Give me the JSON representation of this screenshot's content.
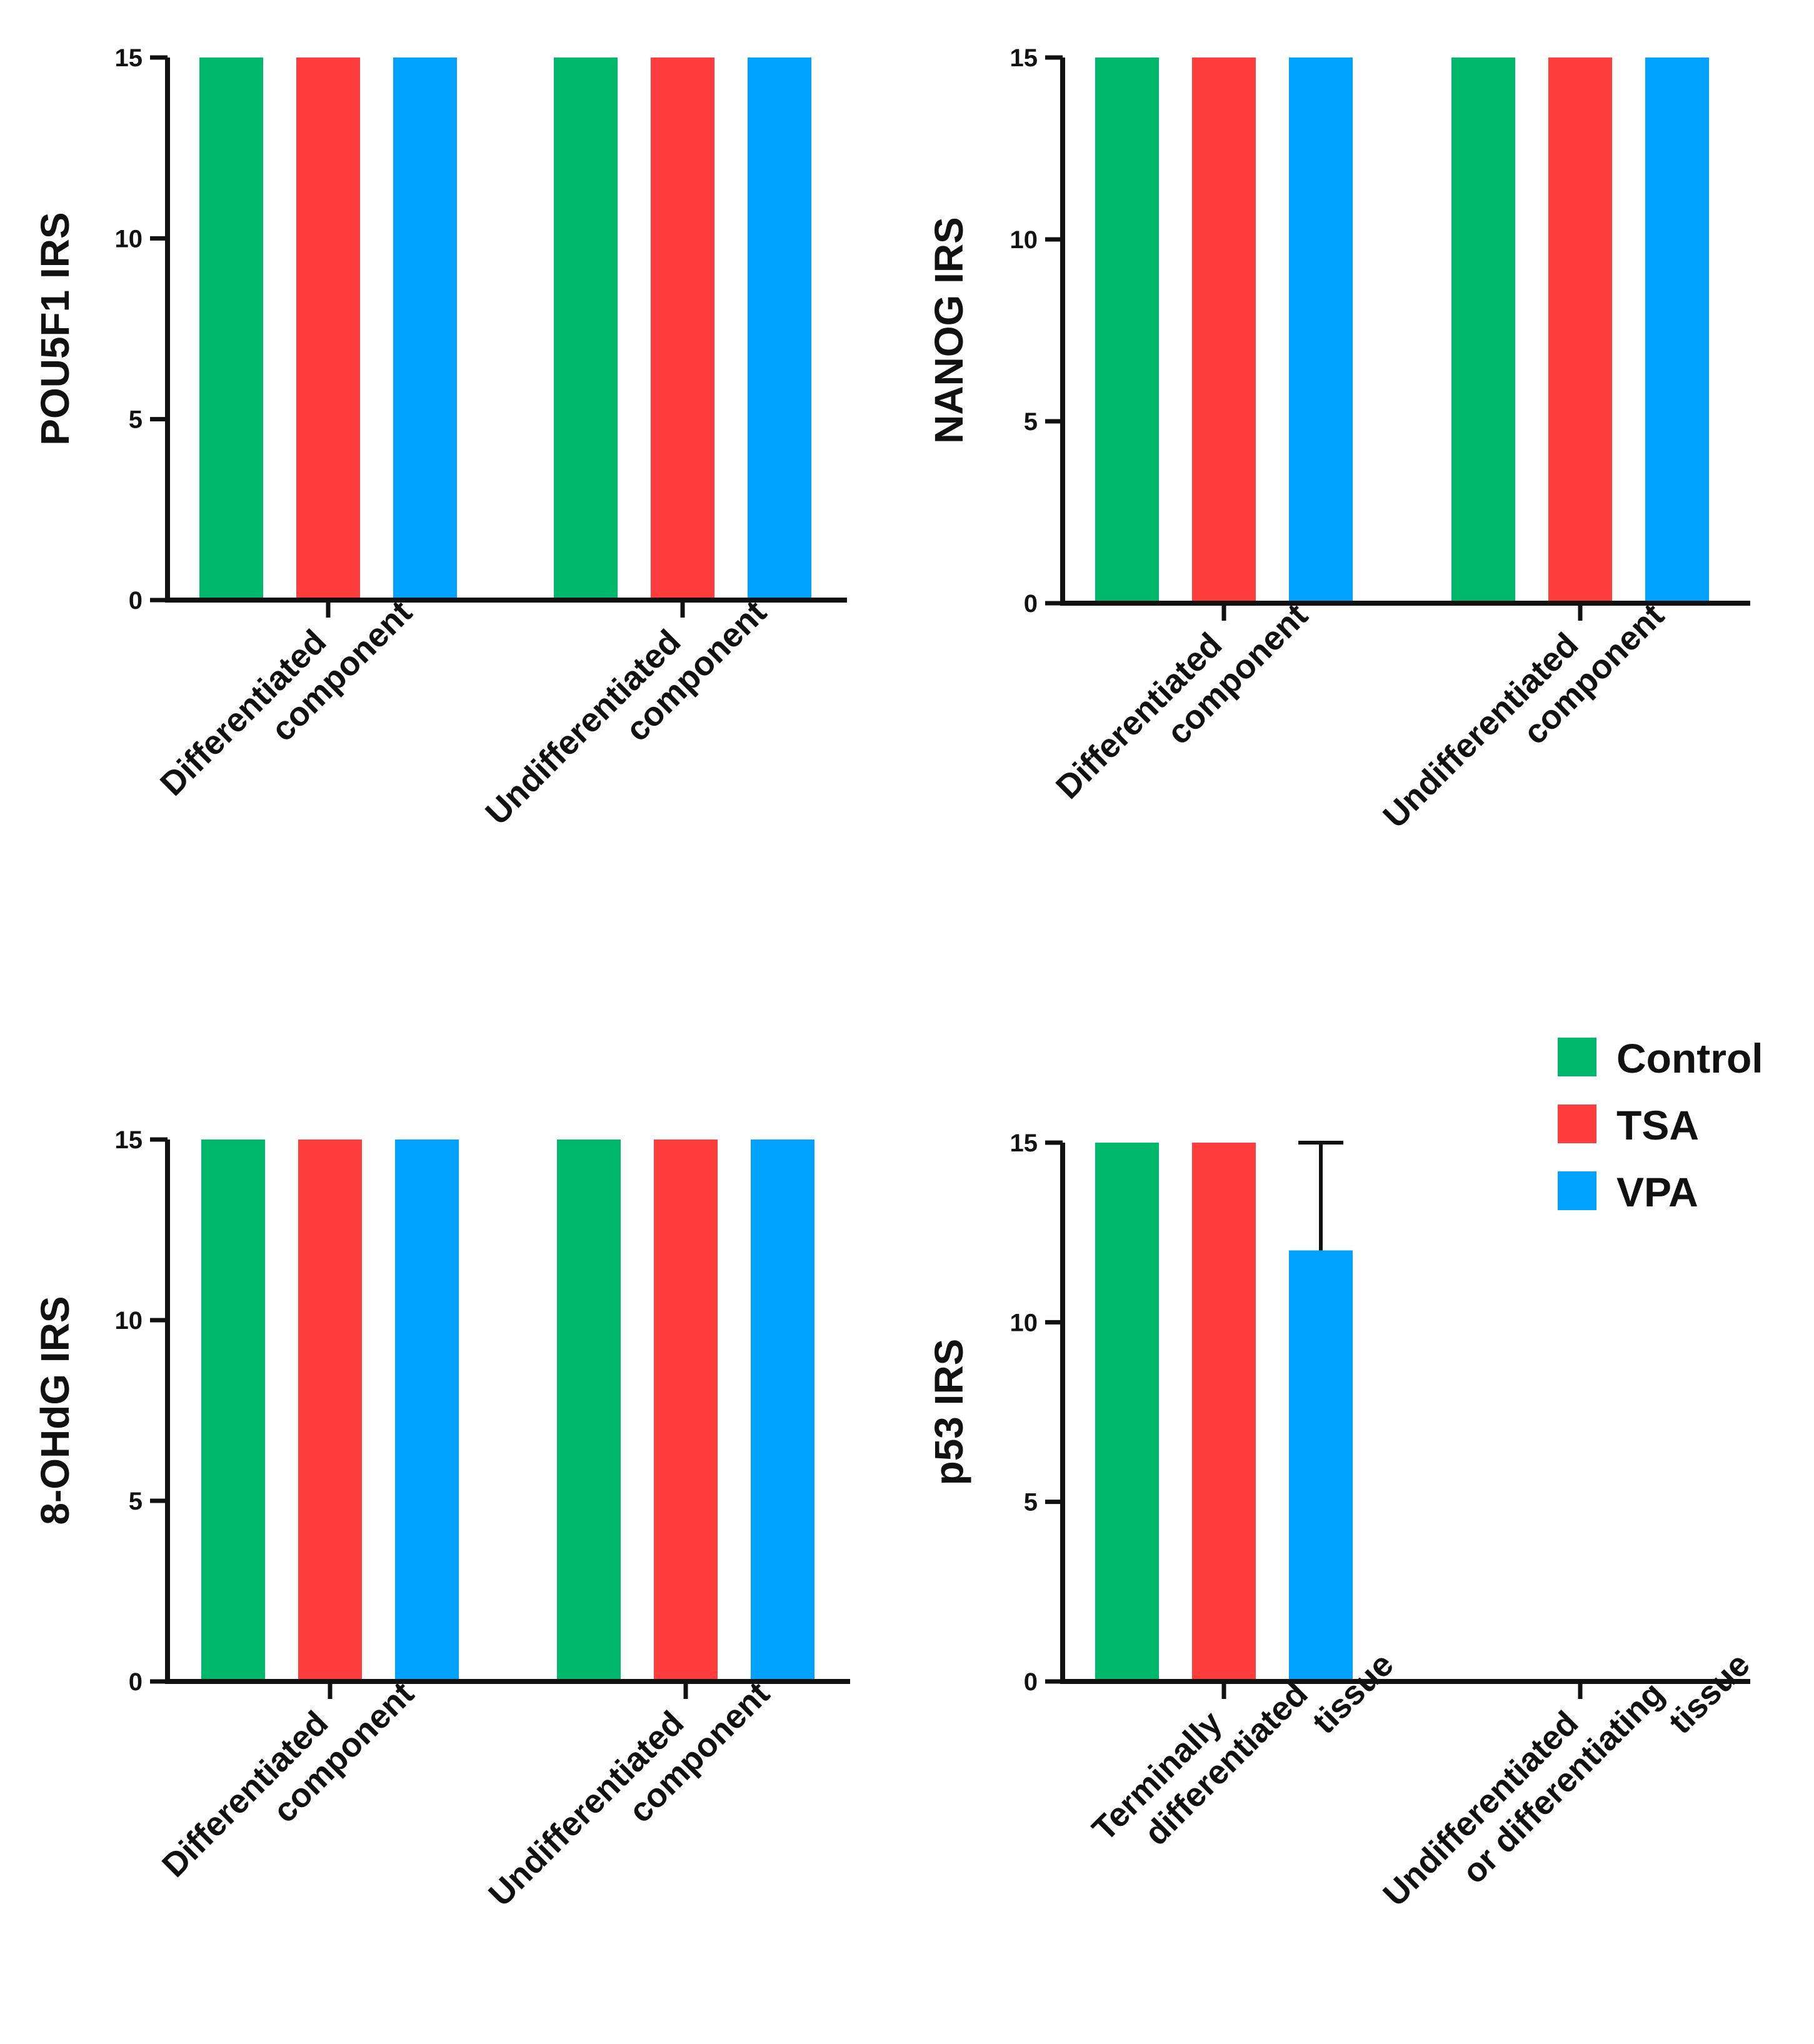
{
  "colors": {
    "Control": "#00b86b",
    "TSA": "#ff3d3d",
    "VPA": "#00a2ff",
    "axis": "#111111"
  },
  "legend": {
    "items": [
      {
        "name": "Control",
        "color": "#00b86b"
      },
      {
        "name": "TSA",
        "color": "#ff3d3d"
      },
      {
        "name": "VPA",
        "color": "#00a2ff"
      }
    ]
  },
  "chart_data": [
    {
      "type": "bar",
      "ylabel": "POU5F1 IRS",
      "ylim": [
        0,
        15
      ],
      "yticks": [
        "0",
        "5",
        "10",
        "15"
      ],
      "categories": [
        [
          "Differentiated",
          "component"
        ],
        [
          "Undifferentiated",
          "component"
        ]
      ],
      "series": [
        {
          "name": "Control",
          "values": [
            15,
            15
          ]
        },
        {
          "name": "TSA",
          "values": [
            15,
            15
          ]
        },
        {
          "name": "VPA",
          "values": [
            15,
            15
          ]
        }
      ],
      "error_bars": []
    },
    {
      "type": "bar",
      "ylabel": "NANOG IRS",
      "ylim": [
        0,
        15
      ],
      "yticks": [
        "0",
        "5",
        "10",
        "15"
      ],
      "categories": [
        [
          "Differentiated",
          "component"
        ],
        [
          "Undifferentiated",
          "component"
        ]
      ],
      "series": [
        {
          "name": "Control",
          "values": [
            15,
            15
          ]
        },
        {
          "name": "TSA",
          "values": [
            15,
            15
          ]
        },
        {
          "name": "VPA",
          "values": [
            15,
            15
          ]
        }
      ],
      "error_bars": []
    },
    {
      "type": "bar",
      "ylabel": "8-OHdG IRS",
      "ylim": [
        0,
        15
      ],
      "yticks": [
        "0",
        "5",
        "10",
        "15"
      ],
      "categories": [
        [
          "Differentiated",
          "component"
        ],
        [
          "Undifferentiated",
          "component"
        ]
      ],
      "series": [
        {
          "name": "Control",
          "values": [
            15,
            15
          ]
        },
        {
          "name": "TSA",
          "values": [
            15,
            15
          ]
        },
        {
          "name": "VPA",
          "values": [
            15,
            15
          ]
        }
      ],
      "error_bars": []
    },
    {
      "type": "bar",
      "ylabel": "p53 IRS",
      "ylim": [
        0,
        15
      ],
      "yticks": [
        "0",
        "5",
        "10",
        "15"
      ],
      "categories": [
        [
          "Terminally",
          "differentiated",
          "tissue"
        ],
        [
          "Undifferentiated",
          "or differentiating",
          "tissue"
        ]
      ],
      "series": [
        {
          "name": "Control",
          "values": [
            15,
            0
          ]
        },
        {
          "name": "TSA",
          "values": [
            15,
            0
          ]
        },
        {
          "name": "VPA",
          "values": [
            12,
            0
          ]
        }
      ],
      "error_bars": [
        {
          "series": "VPA",
          "category_index": 0,
          "upper": 15
        }
      ]
    }
  ]
}
